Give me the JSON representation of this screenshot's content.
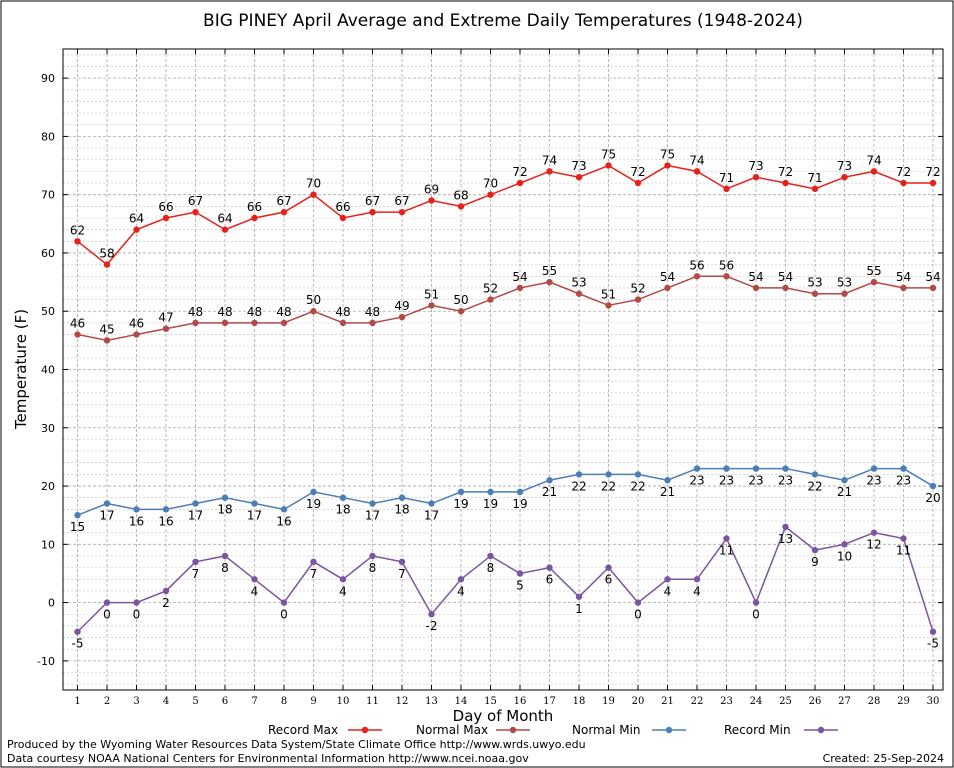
{
  "chart_data": {
    "type": "line",
    "title": "BIG PINEY April Average and Extreme Daily Temperatures (1948-2024)",
    "xlabel": "Day of Month",
    "ylabel": "Temperature (F)",
    "ylim": [
      -15,
      95
    ],
    "yticks": [
      -10,
      0,
      10,
      20,
      30,
      40,
      50,
      60,
      70,
      80,
      90
    ],
    "x": [
      1,
      2,
      3,
      4,
      5,
      6,
      7,
      8,
      9,
      10,
      11,
      12,
      13,
      14,
      15,
      16,
      17,
      18,
      19,
      20,
      21,
      22,
      23,
      24,
      25,
      26,
      27,
      28,
      29,
      30
    ],
    "grid": true,
    "legend_position": "bottom",
    "series": [
      {
        "name": "Record Max",
        "color": "#e8201c",
        "label_pos": "above",
        "values": [
          62,
          58,
          64,
          66,
          67,
          64,
          66,
          67,
          70,
          66,
          67,
          67,
          69,
          68,
          70,
          72,
          74,
          73,
          75,
          72,
          75,
          74,
          71,
          73,
          72,
          71,
          73,
          74,
          72,
          72
        ]
      },
      {
        "name": "Normal Max",
        "color": "#b24a48",
        "label_pos": "above",
        "values": [
          46,
          45,
          46,
          47,
          48,
          48,
          48,
          48,
          50,
          48,
          48,
          49,
          51,
          50,
          52,
          54,
          55,
          53,
          51,
          52,
          54,
          56,
          56,
          54,
          54,
          53,
          53,
          55,
          54,
          54
        ]
      },
      {
        "name": "Normal Min",
        "color": "#4a7eb4",
        "label_pos": "below",
        "values": [
          15,
          17,
          16,
          16,
          17,
          18,
          17,
          16,
          19,
          18,
          17,
          18,
          17,
          19,
          19,
          19,
          21,
          22,
          22,
          22,
          21,
          23,
          23,
          23,
          23,
          22,
          21,
          23,
          23,
          20
        ]
      },
      {
        "name": "Record Min",
        "color": "#7a55a0",
        "label_pos": "below",
        "values": [
          -5,
          0,
          0,
          2,
          7,
          8,
          4,
          0,
          7,
          4,
          8,
          7,
          -2,
          4,
          8,
          5,
          6,
          1,
          6,
          0,
          4,
          4,
          11,
          0,
          13,
          9,
          10,
          12,
          11,
          -5
        ]
      }
    ]
  },
  "footer": {
    "line1": "Produced by the Wyoming Water Resources Data System/State Climate Office http://www.wrds.uwyo.edu",
    "line2": "Data courtesy NOAA National Centers for Environmental Information http://www.ncei.noaa.gov",
    "created": "Created: 25-Sep-2024"
  }
}
